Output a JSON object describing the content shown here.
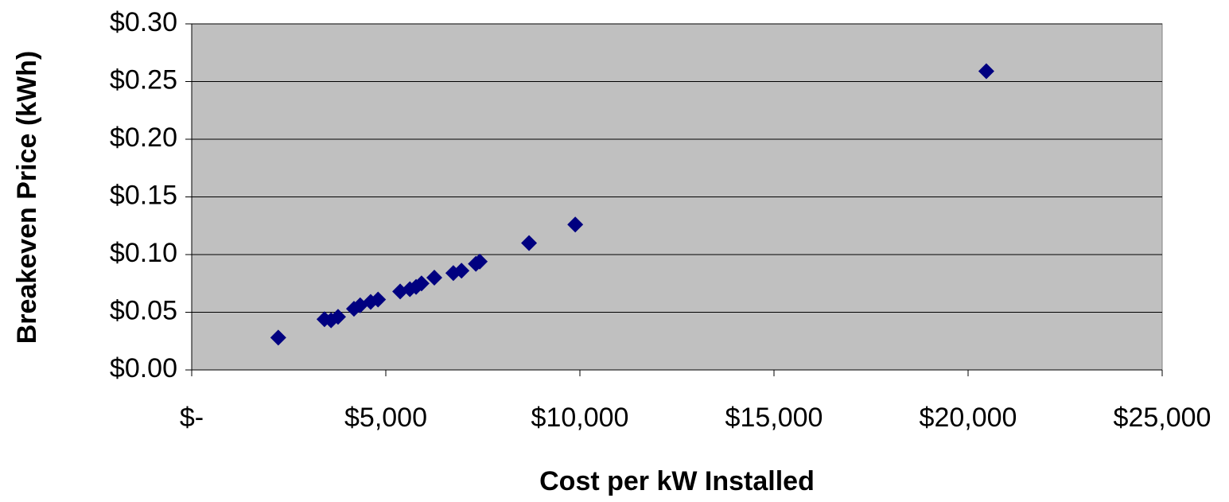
{
  "chart_data": {
    "type": "scatter",
    "x_label": "Cost per kW Installed",
    "y_label": "Breakeven Price (kWh)",
    "x": [
      2230,
      3420,
      3590,
      3770,
      4180,
      4340,
      4610,
      4800,
      5370,
      5620,
      5780,
      5920,
      6250,
      6740,
      6950,
      7320,
      7420,
      8690,
      9880,
      20470
    ],
    "values": [
      0.028,
      0.044,
      0.043,
      0.046,
      0.053,
      0.056,
      0.059,
      0.061,
      0.068,
      0.07,
      0.072,
      0.075,
      0.08,
      0.084,
      0.086,
      0.092,
      0.094,
      0.11,
      0.126,
      0.259
    ],
    "color": "#000080",
    "plot_background": "#c0c0c0",
    "grid": true,
    "xlim": [
      0,
      25000
    ],
    "xticks": [
      {
        "value": 0,
        "label": "$-"
      },
      {
        "value": 5000,
        "label": "$5,000"
      },
      {
        "value": 10000,
        "label": "$10,000"
      },
      {
        "value": 15000,
        "label": "$15,000"
      },
      {
        "value": 20000,
        "label": "$20,000"
      },
      {
        "value": 25000,
        "label": "$25,000"
      }
    ],
    "ylim": [
      0,
      0.3
    ],
    "yticks": [
      {
        "value": 0,
        "label": "$0.00"
      },
      {
        "value": 0.05,
        "label": "$0.05"
      },
      {
        "value": 0.1,
        "label": "$0.10"
      },
      {
        "value": 0.15,
        "label": "$0.15"
      },
      {
        "value": 0.2,
        "label": "$0.20"
      },
      {
        "value": 0.25,
        "label": "$0.25"
      },
      {
        "value": 0.3,
        "label": "$0.30"
      }
    ]
  }
}
